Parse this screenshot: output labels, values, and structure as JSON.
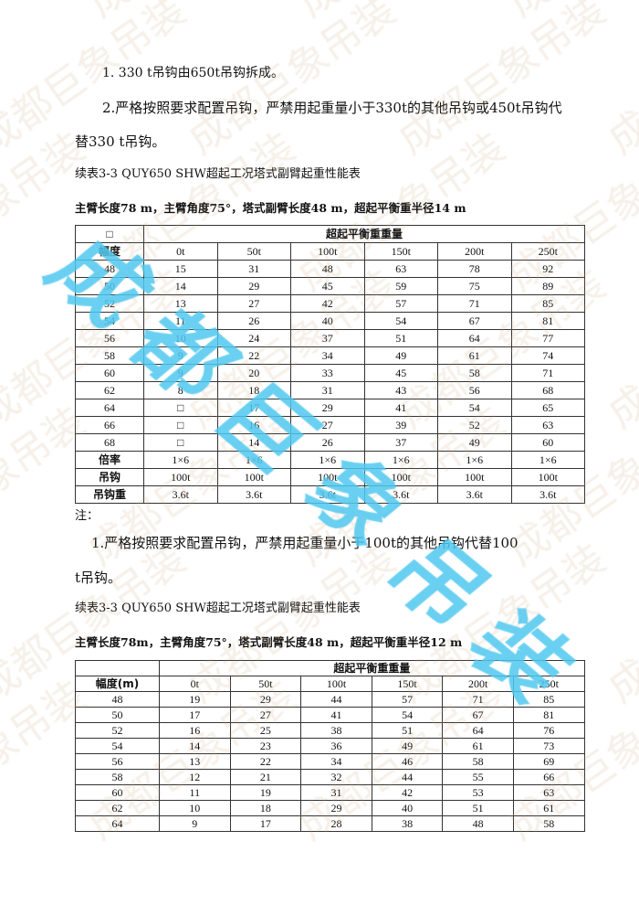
{
  "watermark": {
    "text": "成都巨象吊装",
    "color": "#50c8f0"
  },
  "notes_top": [
    "1. 330 t吊钩由650t吊钩拆成。",
    "2.严格按照要求配置吊钩，严禁用起重量小于330t的其他吊钩或450t吊钩代",
    "替330  t吊钩。"
  ],
  "table1": {
    "caption": "续表3-3 QUY650 SHW超起工况塔式副臂起重性能表",
    "subtitle": "主臂长度78 m，主臂角度75°，塔式副臂长度48 m，超起平衡重半径14 m",
    "corner": "□",
    "group_header": "超起平衡重重量",
    "row_header": "幅度",
    "columns": [
      "0t",
      "50t",
      "100t",
      "150t",
      "200t",
      "250t"
    ],
    "rows": [
      [
        "48",
        "15",
        "31",
        "48",
        "63",
        "78",
        "92"
      ],
      [
        "50",
        "14",
        "29",
        "45",
        "59",
        "75",
        "89"
      ],
      [
        "52",
        "13",
        "27",
        "42",
        "57",
        "71",
        "85"
      ],
      [
        "54",
        "11",
        "26",
        "40",
        "54",
        "67",
        "81"
      ],
      [
        "56",
        "10",
        "24",
        "37",
        "51",
        "64",
        "77"
      ],
      [
        "58",
        "9",
        "22",
        "34",
        "49",
        "61",
        "74"
      ],
      [
        "60",
        "9",
        "20",
        "33",
        "45",
        "58",
        "71"
      ],
      [
        "62",
        "8",
        "18",
        "31",
        "43",
        "56",
        "68"
      ],
      [
        "64",
        "□",
        "17",
        "29",
        "41",
        "54",
        "65"
      ],
      [
        "66",
        "□",
        "16",
        "27",
        "39",
        "52",
        "63"
      ],
      [
        "68",
        "□",
        "14",
        "26",
        "37",
        "49",
        "60"
      ],
      [
        "倍率",
        "1×6",
        "1×6",
        "1×6",
        "1×6",
        "1×6",
        "1×6"
      ],
      [
        "吊钩",
        "100t",
        "100t",
        "100t",
        "100t",
        "100t",
        "100t"
      ],
      [
        "吊钩重",
        "3.6t",
        "3.6t",
        "3.6t",
        "3.6t",
        "3.6t",
        "3.6t"
      ]
    ]
  },
  "notes_mid": {
    "label": "注：",
    "lines": [
      "1.严格按照要求配置吊钩，严禁用起重量小于100t的其他吊钩代替100",
      "t吊钩。"
    ]
  },
  "table2": {
    "caption": "续表3-3 QUY650 SHW超起工况塔式副臂起重性能表",
    "subtitle": "主臂长度78m，主臂角度75°，塔式副臂长度48 m，超起平衡重半径12 m",
    "group_header": "超起平衡重重量",
    "row_header": "幅度(m)",
    "columns": [
      "0t",
      "50t",
      "100t",
      "150t",
      "200t",
      "250t"
    ],
    "rows": [
      [
        "48",
        "19",
        "29",
        "44",
        "57",
        "71",
        "85"
      ],
      [
        "50",
        "17",
        "27",
        "41",
        "54",
        "67",
        "81"
      ],
      [
        "52",
        "16",
        "25",
        "38",
        "51",
        "64",
        "76"
      ],
      [
        "54",
        "14",
        "23",
        "36",
        "49",
        "61",
        "73"
      ],
      [
        "56",
        "13",
        "22",
        "34",
        "46",
        "58",
        "69"
      ],
      [
        "58",
        "12",
        "21",
        "32",
        "44",
        "55",
        "66"
      ],
      [
        "60",
        "11",
        "19",
        "31",
        "42",
        "53",
        "63"
      ],
      [
        "62",
        "10",
        "18",
        "29",
        "40",
        "51",
        "61"
      ],
      [
        "64",
        "9",
        "17",
        "28",
        "38",
        "48",
        "58"
      ]
    ]
  }
}
